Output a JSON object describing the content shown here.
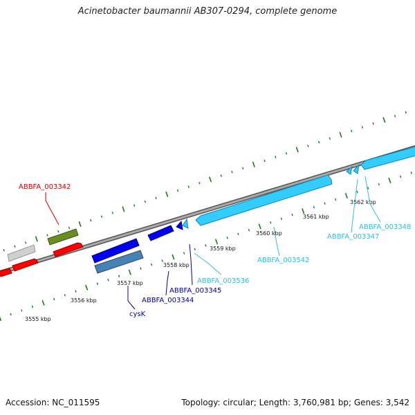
{
  "title": "Acinetobacter baumannii AB307-0294, complete genome",
  "footer": {
    "accession": "Accession: NC_011595",
    "summary": "Topology: circular; Length: 3,760,981 bp; Genes: 3,542"
  },
  "axis": {
    "ticks": [
      "3555 kbp",
      "3556 kbp",
      "3557 kbp",
      "3558 kbp",
      "3559 kbp",
      "3560 kbp",
      "3561 kbp",
      "3562 kbp"
    ]
  },
  "genes": [
    {
      "label": "ABBFA_003342",
      "color": "#cc0000"
    },
    {
      "label": "ABBFA_003344",
      "color": "#00008b"
    },
    {
      "label": "ABBFA_003345",
      "color": "#00008b"
    },
    {
      "label": "cysK",
      "color": "#00008b"
    },
    {
      "label": "ABBFA_003536",
      "color": "#33bbdd"
    },
    {
      "label": "ABBFA_003542",
      "color": "#33bbdd"
    },
    {
      "label": "ABBFA_003347",
      "color": "#33bbdd"
    },
    {
      "label": "ABBFA_003348",
      "color": "#33bbdd"
    }
  ],
  "colors": {
    "backbone": "#888888",
    "ticks": "#1a7a1a",
    "red": "#ff0000",
    "gray": "#cccccc",
    "olive": "#6b8e23",
    "blue": "#0000ee",
    "steel": "#4682b4",
    "cyan": "#33ccff"
  }
}
